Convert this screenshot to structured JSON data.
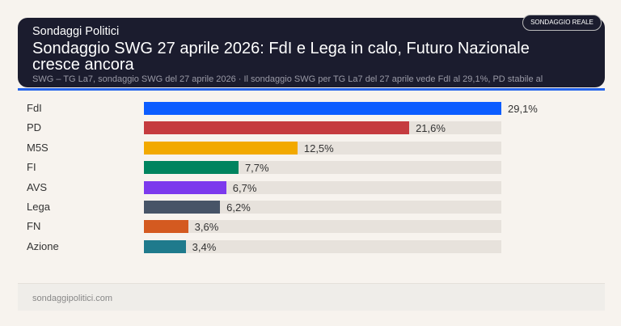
{
  "header": {
    "brand": "Sondaggi Politici",
    "title": "Sondaggio SWG 27 aprile 2026: FdI e Lega in calo, Futuro Nazionale cresce ancora",
    "subtitle": "SWG – TG La7, sondaggio SWG del 27 aprile 2026 · Il sondaggio SWG per TG La7 del 27 aprile vede FdI al 29,1%, PD stabile al",
    "badge": "SONDAGGIO REALE"
  },
  "footer": {
    "site": "sondaggipolitici.com"
  },
  "colors": {
    "header_bg": "#1b1c2e",
    "accent": "#2563eb",
    "track": "#e7e2dc"
  },
  "chart_data": {
    "type": "bar",
    "orientation": "horizontal",
    "categories": [
      "FdI",
      "PD",
      "M5S",
      "FI",
      "AVS",
      "Lega",
      "FN",
      "Azione"
    ],
    "values": [
      29.1,
      21.6,
      12.5,
      7.7,
      6.7,
      6.2,
      3.6,
      3.4
    ],
    "value_labels": [
      "29,1%",
      "21,6%",
      "12,5%",
      "7,7%",
      "6,7%",
      "6,2%",
      "3,6%",
      "3,4%"
    ],
    "colors": [
      "#0b5cff",
      "#c53b3f",
      "#f2a900",
      "#00845f",
      "#7c3aed",
      "#475467",
      "#d45a20",
      "#1f7a8c"
    ],
    "xlim": [
      0,
      29.1
    ],
    "grid": false
  }
}
